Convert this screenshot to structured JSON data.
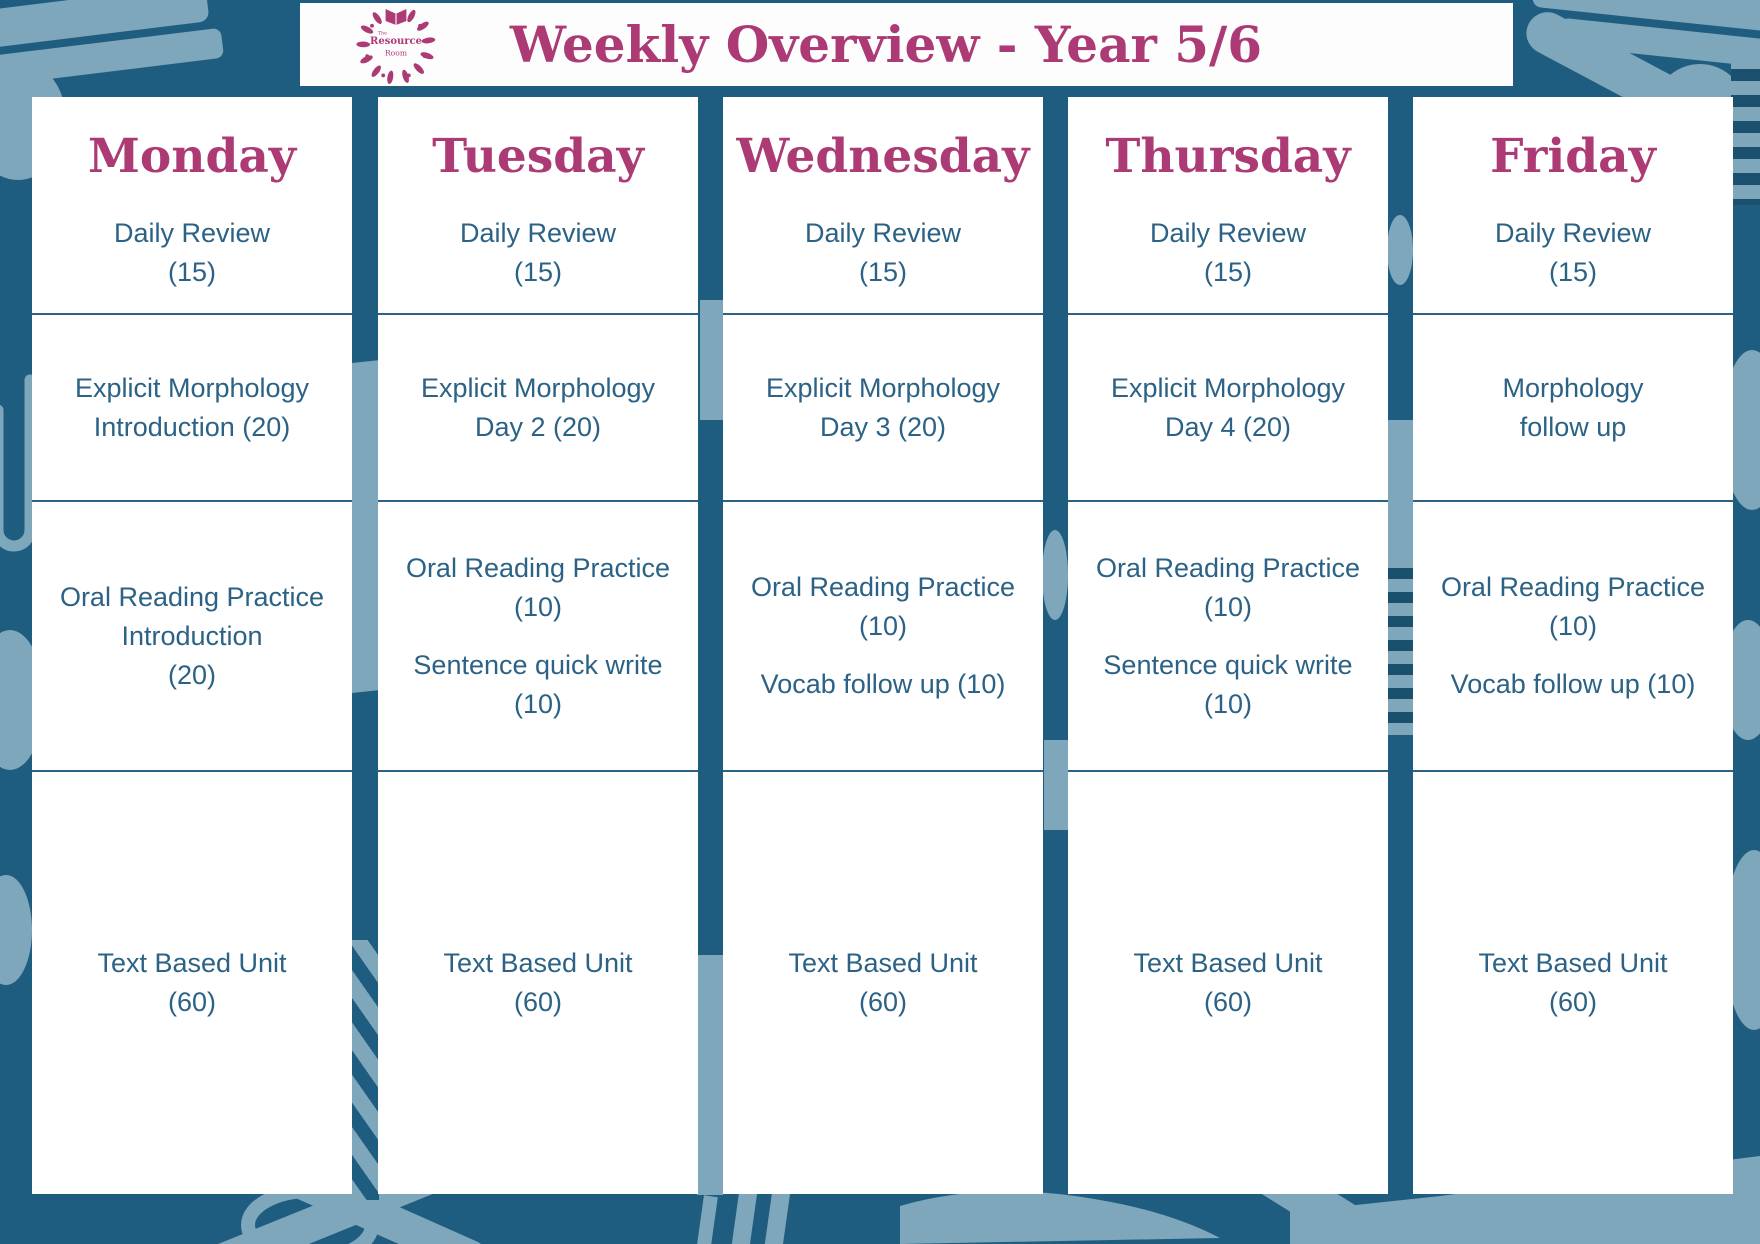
{
  "page": {
    "title": "Weekly Overview - Year 5/6"
  },
  "logo": {
    "line1": "The",
    "line2": "Resource",
    "line3": "Room"
  },
  "colors": {
    "background_teal": "#1f5d80",
    "pattern_light_blue": "#7ea7bb",
    "card_white": "#ffffff",
    "accent_magenta": "#ac3a74",
    "text_teal": "#2b6285"
  },
  "columns": [
    {
      "day": "Monday",
      "rows": [
        {
          "items": [
            [
              "Daily Review",
              "(15)"
            ]
          ]
        },
        {
          "items": [
            [
              "Explicit Morphology",
              "Introduction (20)"
            ]
          ]
        },
        {
          "items": [
            [
              "Oral Reading Practice",
              "Introduction",
              "(20)"
            ]
          ]
        },
        {
          "items": [
            [
              "Text Based Unit",
              "(60)"
            ]
          ]
        }
      ]
    },
    {
      "day": "Tuesday",
      "rows": [
        {
          "items": [
            [
              "Daily Review",
              "(15)"
            ]
          ]
        },
        {
          "items": [
            [
              "Explicit Morphology",
              "Day 2 (20)"
            ]
          ]
        },
        {
          "items": [
            [
              "Oral Reading Practice",
              "(10)"
            ],
            [
              "Sentence quick write",
              "(10)"
            ]
          ]
        },
        {
          "items": [
            [
              "Text Based Unit",
              "(60)"
            ]
          ]
        }
      ]
    },
    {
      "day": "Wednesday",
      "rows": [
        {
          "items": [
            [
              "Daily Review",
              "(15)"
            ]
          ]
        },
        {
          "items": [
            [
              "Explicit Morphology",
              "Day 3 (20)"
            ]
          ]
        },
        {
          "items": [
            [
              "Oral Reading Practice",
              "(10)"
            ],
            [
              "Vocab follow up (10)"
            ]
          ]
        },
        {
          "items": [
            [
              "Text Based Unit",
              "(60)"
            ]
          ]
        }
      ]
    },
    {
      "day": "Thursday",
      "rows": [
        {
          "items": [
            [
              "Daily Review",
              "(15)"
            ]
          ]
        },
        {
          "items": [
            [
              "Explicit Morphology",
              "Day 4 (20)"
            ]
          ]
        },
        {
          "items": [
            [
              "Oral Reading Practice",
              "(10)"
            ],
            [
              "Sentence quick write",
              "(10)"
            ]
          ]
        },
        {
          "items": [
            [
              "Text Based Unit",
              "(60)"
            ]
          ]
        }
      ]
    },
    {
      "day": "Friday",
      "rows": [
        {
          "items": [
            [
              "Daily Review",
              "(15)"
            ]
          ]
        },
        {
          "items": [
            [
              "Morphology",
              "follow up"
            ]
          ]
        },
        {
          "items": [
            [
              "Oral Reading Practice",
              "(10)"
            ],
            [
              "Vocab follow up (10)"
            ]
          ]
        },
        {
          "items": [
            [
              "Text Based Unit",
              "(60)"
            ]
          ]
        }
      ]
    }
  ]
}
